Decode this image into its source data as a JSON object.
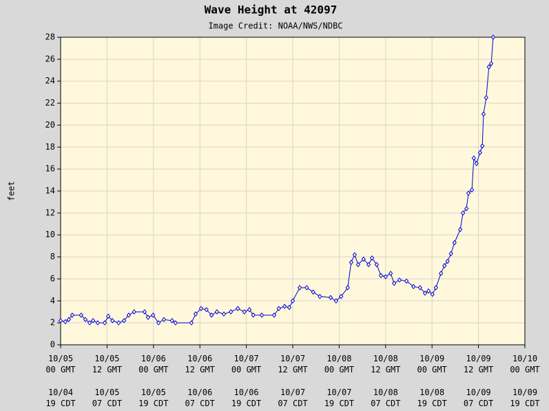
{
  "chart_data": {
    "type": "line",
    "title": "Wave Height at 42097",
    "subtitle": "Image Credit: NOAA/NWS/NDBC",
    "ylabel": "feet",
    "ylim": [
      0,
      28
    ],
    "yticks": [
      0,
      2,
      4,
      6,
      8,
      10,
      12,
      14,
      16,
      18,
      20,
      22,
      24,
      26,
      28
    ],
    "xlim": [
      0,
      120
    ],
    "xticks": [
      {
        "value": 0,
        "label": "10/05\n00 GMT"
      },
      {
        "value": 12,
        "label": "10/05\n12 GMT"
      },
      {
        "value": 24,
        "label": "10/06\n00 GMT"
      },
      {
        "value": 36,
        "label": "10/06\n12 GMT"
      },
      {
        "value": 48,
        "label": "10/07\n00 GMT"
      },
      {
        "value": 60,
        "label": "10/07\n12 GMT"
      },
      {
        "value": 72,
        "label": "10/08\n00 GMT"
      },
      {
        "value": 84,
        "label": "10/08\n12 GMT"
      },
      {
        "value": 96,
        "label": "10/09\n00 GMT"
      },
      {
        "value": 108,
        "label": "10/09\n12 GMT"
      },
      {
        "value": 120,
        "label": "10/10\n00 GMT"
      }
    ],
    "xticks_local": [
      {
        "value": 0,
        "label": "10/04\n19 CDT"
      },
      {
        "value": 12,
        "label": "10/05\n07 CDT"
      },
      {
        "value": 24,
        "label": "10/05\n19 CDT"
      },
      {
        "value": 36,
        "label": "10/06\n07 CDT"
      },
      {
        "value": 48,
        "label": "10/06\n19 CDT"
      },
      {
        "value": 60,
        "label": "10/07\n07 CDT"
      },
      {
        "value": 72,
        "label": "10/07\n19 CDT"
      },
      {
        "value": 84,
        "label": "10/08\n07 CDT"
      },
      {
        "value": 96,
        "label": "10/08\n19 CDT"
      },
      {
        "value": 108,
        "label": "10/09\n07 CDT"
      },
      {
        "value": 120,
        "label": "10/09\n19 CDT"
      }
    ],
    "grid": true,
    "background": "#fff8dc",
    "series": [
      {
        "name": "Wave Height",
        "color": "#0000cc",
        "x": [
          0,
          1.2,
          2.1,
          3,
          5.3,
          6.4,
          7.5,
          8.4,
          9.6,
          11.4,
          12.3,
          13.4,
          15,
          16.4,
          17.6,
          19,
          21.7,
          22.6,
          23.9,
          25.3,
          26.7,
          28.8,
          29.7,
          33.8,
          34.9,
          36.3,
          37.7,
          39,
          40.4,
          42.2,
          44,
          45.8,
          47.5,
          48.8,
          49.8,
          52,
          55.2,
          56.4,
          57.9,
          59.1,
          60,
          61.8,
          63.6,
          65.3,
          67,
          69.8,
          71.2,
          72.5,
          74.2,
          75.1,
          76,
          76.9,
          78.3,
          79.6,
          80.5,
          81.7,
          82.8,
          84,
          85.3,
          86.2,
          87.6,
          89.4,
          91.2,
          92.9,
          94.2,
          95.1,
          96.1,
          97,
          98.3,
          99.2,
          100,
          100.9,
          101.8,
          103.3,
          104,
          104.9,
          105.4,
          106.3,
          106.8,
          107.5,
          108.4,
          109,
          109.3,
          110,
          110.7,
          111.3,
          111.8
        ],
        "values": [
          2.2,
          2.1,
          2.3,
          2.7,
          2.7,
          2.3,
          2.0,
          2.2,
          2.0,
          2.0,
          2.6,
          2.2,
          2.0,
          2.2,
          2.7,
          3.0,
          3.0,
          2.5,
          2.7,
          2.0,
          2.3,
          2.2,
          2.0,
          2.0,
          2.8,
          3.3,
          3.2,
          2.7,
          3.0,
          2.8,
          3.0,
          3.3,
          3.0,
          3.2,
          2.7,
          2.7,
          2.7,
          3.3,
          3.5,
          3.4,
          4.0,
          5.2,
          5.2,
          4.8,
          4.4,
          4.3,
          4.0,
          4.4,
          5.2,
          7.5,
          8.2,
          7.3,
          7.8,
          7.3,
          7.9,
          7.3,
          6.3,
          6.2,
          6.5,
          5.6,
          5.9,
          5.8,
          5.3,
          5.2,
          4.7,
          4.9,
          4.6,
          5.2,
          6.5,
          7.2,
          7.6,
          8.3,
          9.3,
          10.5,
          12.0,
          12.4,
          13.8,
          14.1,
          17.0,
          16.5,
          17.5,
          18.1,
          21.0,
          22.5,
          25.3,
          25.6,
          28.0
        ]
      }
    ]
  }
}
